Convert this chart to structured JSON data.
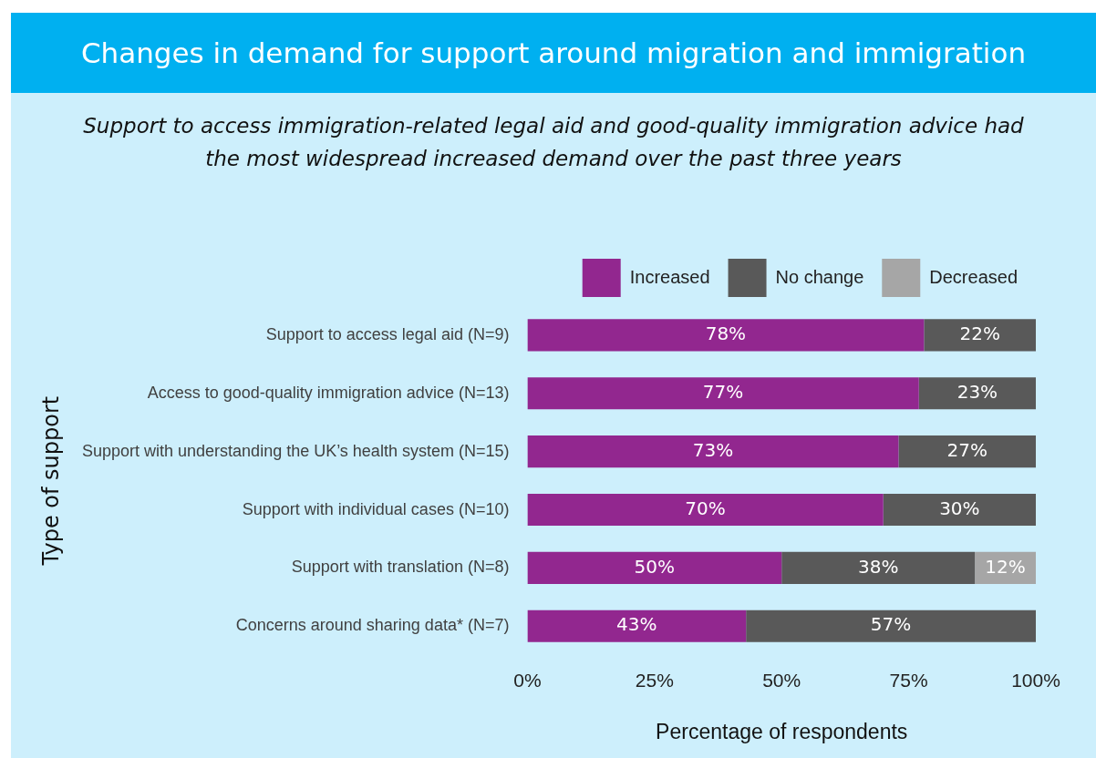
{
  "chart_data": {
    "type": "bar",
    "orientation": "horizontal",
    "stacked": true,
    "title": "Changes in demand for support around migration and immigration",
    "subtitle": "Support to access immigration-related legal aid and good-quality immigration advice had the most widespread increased demand over the past three years",
    "xlabel": "Percentage of respondents",
    "ylabel": "Type of support",
    "categories": [
      "Support to access legal aid (N=9)",
      "Access to good-quality immigration advice (N=13)",
      "Support with understanding the UK’s health system (N=15)",
      "Support with individual cases (N=10)",
      "Support with translation (N=8)",
      "Concerns around sharing data* (N=7)"
    ],
    "series": [
      {
        "name": "Increased",
        "color": "#92278f",
        "values": [
          78,
          77,
          73,
          70,
          50,
          43
        ],
        "value_labels": [
          "78%",
          "77%",
          "73%",
          "70%",
          "50%",
          "43%"
        ]
      },
      {
        "name": "No change",
        "color": "#595959",
        "values": [
          22,
          23,
          27,
          30,
          38,
          57
        ],
        "value_labels": [
          "22%",
          "23%",
          "27%",
          "30%",
          "38%",
          "57%"
        ]
      },
      {
        "name": "Decreased",
        "color": "#a6a6a6",
        "values": [
          null,
          null,
          null,
          null,
          12,
          null
        ],
        "value_labels": [
          null,
          null,
          null,
          null,
          "12%",
          null
        ]
      }
    ],
    "xlim": [
      0,
      100
    ],
    "xticks": [
      {
        "value": 0,
        "label": "0%"
      },
      {
        "value": 25,
        "label": "25%"
      },
      {
        "value": 50,
        "label": "50%"
      },
      {
        "value": 75,
        "label": "75%"
      },
      {
        "value": 100,
        "label": "100%"
      }
    ],
    "grid": false,
    "legend": "top right"
  }
}
